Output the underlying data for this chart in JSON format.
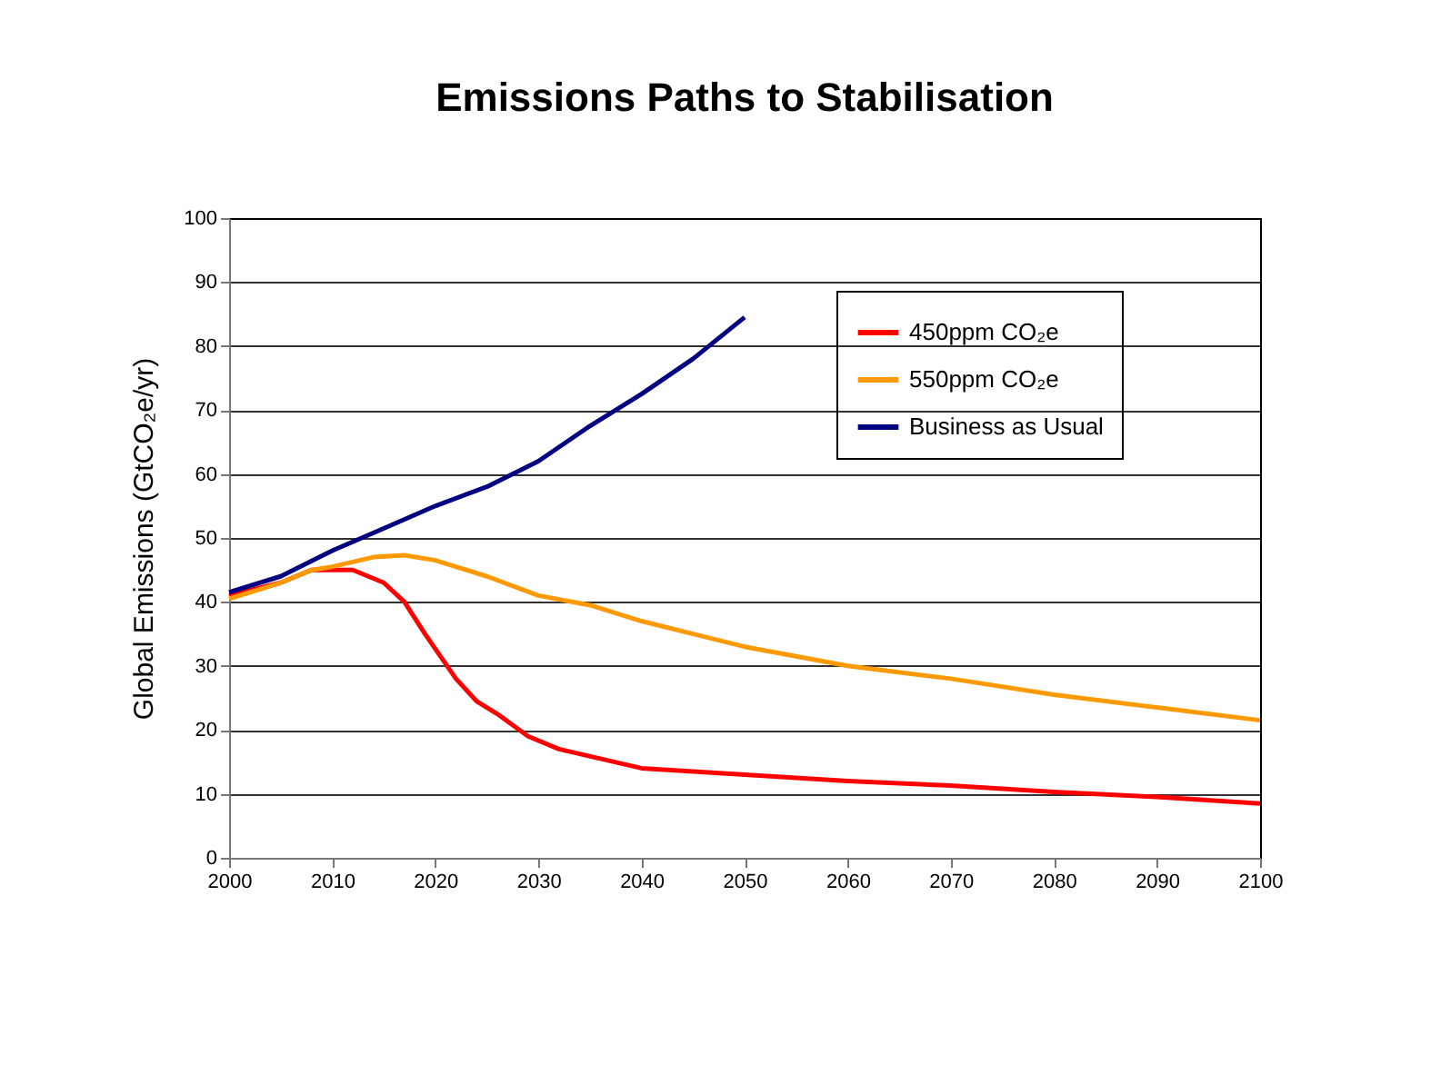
{
  "chart_data": {
    "type": "line",
    "title": "Emissions Paths to Stabilisation",
    "ylabel": "Global Emissions (GtCO₂e/yr)",
    "xlim": [
      2000,
      2100
    ],
    "xticks": [
      2000,
      2010,
      2020,
      2030,
      2040,
      2050,
      2060,
      2070,
      2080,
      2090,
      2100
    ],
    "ylim": [
      0,
      100
    ],
    "yticks": [
      0,
      10,
      20,
      30,
      40,
      50,
      60,
      70,
      80,
      90,
      100
    ],
    "grid": "y",
    "legend": "top right",
    "line_style": "solid",
    "marker": "none",
    "series": [
      {
        "name": "450ppm CO₂e",
        "color": "#ff0000",
        "x": [
          2000,
          2005,
          2008,
          2012,
          2015,
          2017,
          2019,
          2022,
          2024,
          2026,
          2029,
          2032,
          2036,
          2040,
          2045,
          2050,
          2060,
          2070,
          2080,
          2090,
          2100
        ],
        "values": [
          41,
          43,
          45,
          45,
          43,
          40,
          35,
          28,
          24.5,
          22.5,
          19,
          17,
          15.5,
          14,
          13.5,
          13,
          12,
          11.3,
          10.3,
          9.5,
          8.5
        ]
      },
      {
        "name": "550ppm CO₂e",
        "color": "#ff9900",
        "x": [
          2000,
          2005,
          2008,
          2010,
          2014,
          2017,
          2020,
          2025,
          2030,
          2035,
          2040,
          2045,
          2050,
          2060,
          2070,
          2080,
          2090,
          2100
        ],
        "values": [
          40.5,
          43,
          45,
          45.5,
          47,
          47.3,
          46.5,
          44,
          41,
          39.5,
          37,
          35,
          33,
          30,
          28,
          25.5,
          23.5,
          21.5
        ]
      },
      {
        "name": "Business as Usual",
        "color": "#000080",
        "x": [
          2000,
          2005,
          2010,
          2015,
          2020,
          2025,
          2030,
          2035,
          2040,
          2045,
          2050
        ],
        "values": [
          41.5,
          44,
          48,
          51.5,
          55,
          58,
          62,
          67.5,
          72.5,
          78,
          84.5
        ]
      }
    ]
  }
}
